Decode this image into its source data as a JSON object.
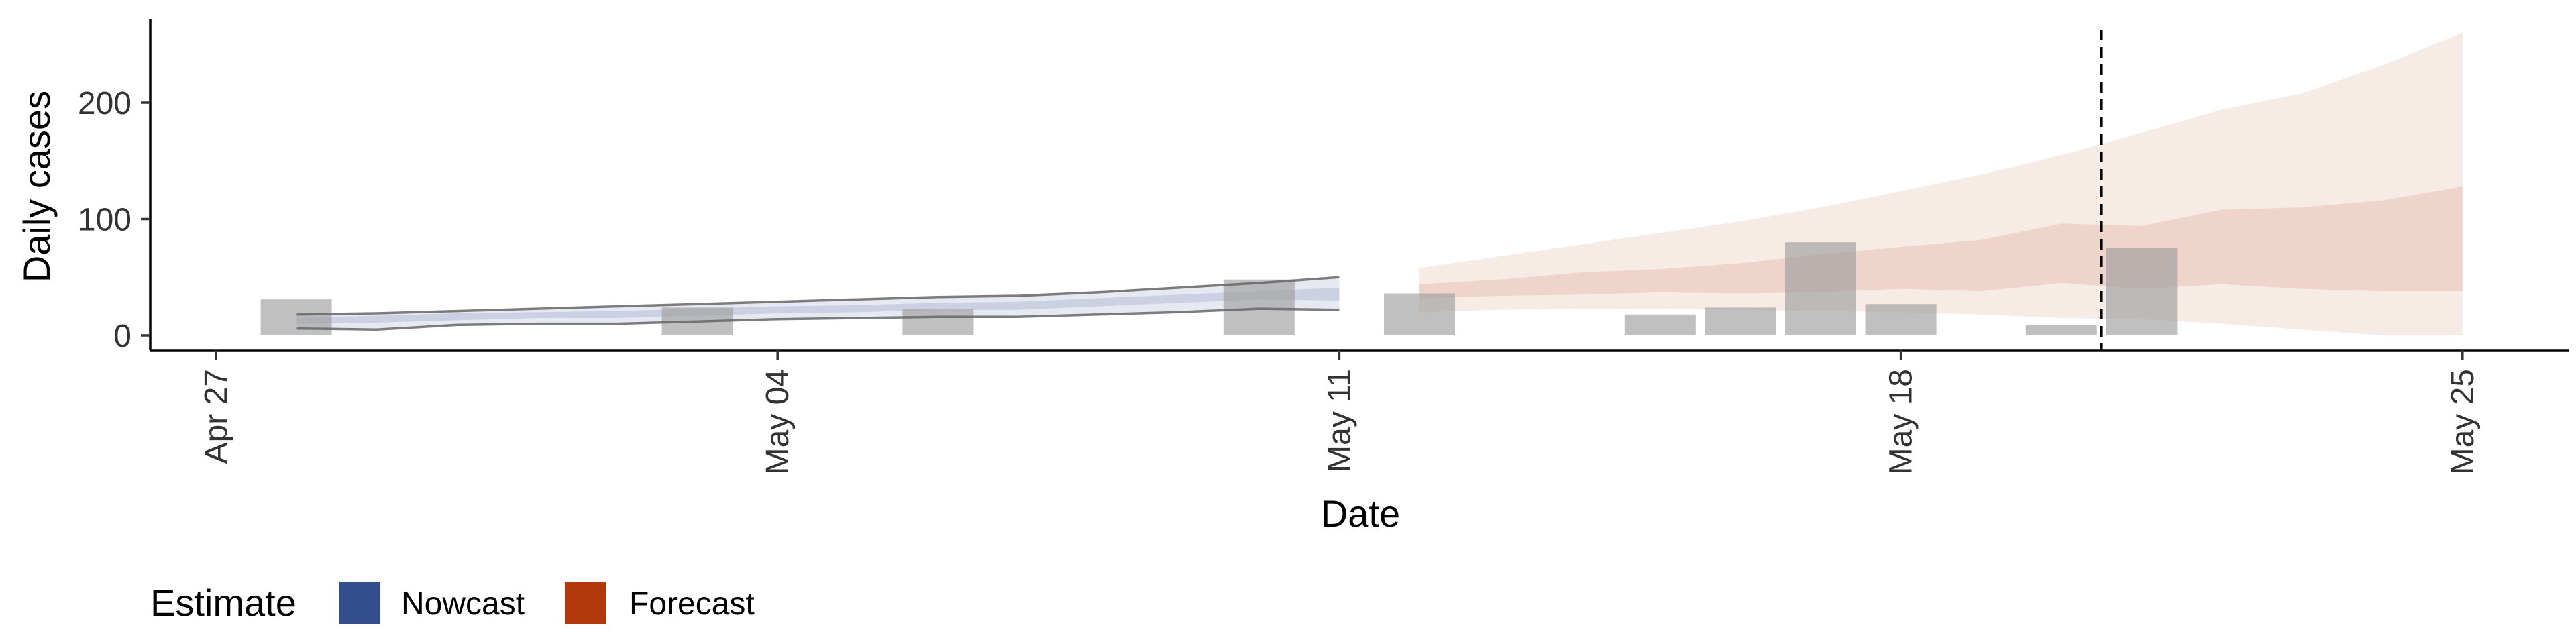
{
  "chart_data": {
    "type": "bar",
    "xlabel": "Date",
    "ylabel": "Daily cases",
    "x_ticks": [
      "Apr 27",
      "May 04",
      "May 11",
      "May 18",
      "May 25"
    ],
    "y_ticks": [
      "0",
      "100",
      "200"
    ],
    "ylim": [
      -12,
      270
    ],
    "vline_at_day": 23.5,
    "observed_cases": [
      {
        "date": "Apr 28",
        "value": 31
      },
      {
        "date": "May 02",
        "value": 24
      },
      {
        "date": "May 05",
        "value": 23
      },
      {
        "date": "May 09",
        "value": 48
      },
      {
        "date": "May 11",
        "value": 36
      },
      {
        "date": "May 14",
        "value": 18
      },
      {
        "date": "May 15",
        "value": 24
      },
      {
        "date": "May 16",
        "value": 80
      },
      {
        "date": "May 17",
        "value": 27
      },
      {
        "date": "May 19",
        "value": 9
      },
      {
        "date": "May 20",
        "value": 75
      }
    ],
    "nowcast": {
      "days": [
        1,
        2,
        3,
        4,
        5,
        6,
        7,
        8,
        9,
        10,
        11,
        12,
        13,
        14
      ],
      "lower90": [
        6,
        5,
        9,
        10,
        10,
        12,
        14,
        15,
        16,
        16,
        18,
        20,
        23,
        22
      ],
      "lower50": [
        10,
        11,
        13,
        15,
        15,
        17,
        19,
        20,
        22,
        22,
        25,
        28,
        31,
        30
      ],
      "upper50": [
        15,
        17,
        19,
        20,
        21,
        23,
        25,
        26,
        28,
        29,
        32,
        35,
        38,
        41
      ],
      "upper90": [
        18,
        19,
        21,
        23,
        25,
        27,
        29,
        31,
        33,
        34,
        37,
        41,
        45,
        50
      ]
    },
    "forecast": {
      "days": [
        15,
        16,
        17,
        18,
        19,
        20,
        21,
        22,
        23,
        24,
        25,
        26,
        27,
        28
      ],
      "lower90": [
        20,
        22,
        23,
        23,
        22,
        21,
        20,
        18,
        15,
        14,
        10,
        5,
        0,
        0
      ],
      "lower50": [
        32,
        34,
        35,
        37,
        36,
        37,
        40,
        38,
        45,
        40,
        44,
        40,
        38,
        38
      ],
      "upper50": [
        44,
        48,
        54,
        57,
        62,
        70,
        76,
        82,
        96,
        94,
        108,
        110,
        116,
        128
      ],
      "upper90": [
        58,
        68,
        78,
        88,
        98,
        110,
        124,
        138,
        155,
        174,
        194,
        208,
        232,
        260
      ]
    },
    "legend": {
      "title": "Estimate",
      "position": "bottom-left",
      "items": [
        {
          "label": "Nowcast",
          "color": "#344d8c"
        },
        {
          "label": "Forecast",
          "color": "#b03a0c"
        }
      ]
    },
    "colors": {
      "bars": "#9e9e9e",
      "nowcast_band": "#344d8c",
      "forecast_band": "#b03a0c",
      "nowcast_outline": "#666666",
      "axis": "#000000",
      "vline": "#000000"
    }
  }
}
